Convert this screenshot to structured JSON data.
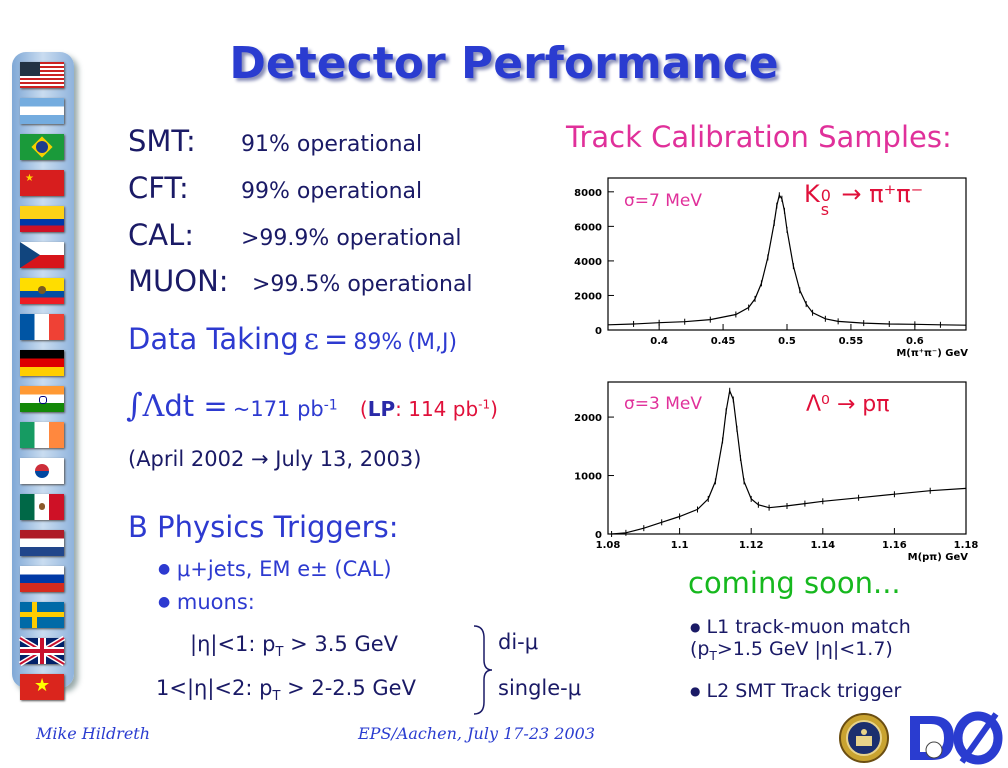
{
  "title": "Detector Performance",
  "detectors": [
    {
      "name": "SMT:",
      "value": "91% operational"
    },
    {
      "name": "CFT:",
      "value": "99% operational"
    },
    {
      "name": "CAL:",
      "value": ">99.9% operational"
    },
    {
      "name": "MUON:",
      "value": ">99.5% operational"
    }
  ],
  "data_taking": {
    "label": "Data Taking",
    "epsilon": "ε",
    "eq": "=",
    "value": "89%",
    "note": "(M,J)"
  },
  "luminosity": {
    "integral": "∫",
    "lambda": "Λ",
    "dt": "dt =",
    "value": "~171 pb",
    "exp": "-1",
    "lp_open": "(",
    "lp": "LP",
    "lp_rest": ": 114 pb",
    "lp_exp": "-1",
    "lp_close": ")"
  },
  "period": "(April 2002 → July 13, 2003)",
  "triggers": {
    "heading": "B Physics Triggers:",
    "bullets": [
      "μ+jets, EM e± (CAL)",
      "muons:"
    ],
    "rows": [
      {
        "cut": "|η|<1: p",
        "sub": "T",
        "rest": " > 3.5 GeV",
        "type": "di-μ"
      },
      {
        "cut": "1<|η|<2: p",
        "sub": "T",
        "rest": " > 2-2.5 GeV",
        "type": "single-μ"
      }
    ]
  },
  "calib": {
    "heading": "Track Calibration Samples:",
    "top": {
      "sigma": "σ=7 MeV",
      "label_k": "K",
      "label_sup": "0",
      "label_sub": "s",
      "label_rest": " → π⁺π⁻",
      "xlabel": "M(π⁺π⁻) GeV"
    },
    "bottom": {
      "sigma": "σ=3 MeV",
      "label": "Λ⁰ → pπ",
      "xlabel": "M(pπ) GeV"
    }
  },
  "coming": {
    "heading": "coming soon...",
    "items": [
      {
        "a": "L1 track-muon match",
        "b": "(p",
        "sub": "T",
        "c": ">1.5 GeV |η|<1.7)"
      },
      {
        "a": "L2 SMT Track trigger"
      }
    ]
  },
  "footer": {
    "author": "Mike Hildreth",
    "event": "EPS/Aachen, July 17-23 2003"
  },
  "chart_data": [
    {
      "type": "line",
      "title": "",
      "xlabel": "M(π⁺π⁻) GeV",
      "ylabel": "",
      "xlim": [
        0.36,
        0.64
      ],
      "ylim": [
        0,
        8800
      ],
      "x_ticks": [
        0.4,
        0.45,
        0.5,
        0.55,
        0.6
      ],
      "y_ticks": [
        0,
        2000,
        4000,
        6000,
        8000
      ],
      "x": [
        0.36,
        0.38,
        0.4,
        0.42,
        0.44,
        0.46,
        0.47,
        0.475,
        0.48,
        0.485,
        0.49,
        0.492,
        0.494,
        0.496,
        0.498,
        0.5,
        0.505,
        0.51,
        0.515,
        0.52,
        0.53,
        0.54,
        0.56,
        0.58,
        0.6,
        0.62,
        0.64
      ],
      "y": [
        300,
        350,
        420,
        480,
        600,
        900,
        1300,
        1800,
        2700,
        4200,
        6200,
        7200,
        7800,
        7600,
        6900,
        5800,
        3700,
        2300,
        1500,
        1000,
        650,
        500,
        400,
        350,
        330,
        300,
        280
      ]
    },
    {
      "type": "line",
      "title": "",
      "xlabel": "M(pπ) GeV",
      "ylabel": "",
      "xlim": [
        1.08,
        1.18
      ],
      "ylim": [
        0,
        2600
      ],
      "x_ticks": [
        1.08,
        1.1,
        1.12,
        1.14,
        1.16,
        1.18
      ],
      "y_ticks": [
        0,
        1000,
        2000
      ],
      "x": [
        1.081,
        1.085,
        1.09,
        1.095,
        1.1,
        1.105,
        1.108,
        1.11,
        1.112,
        1.113,
        1.114,
        1.115,
        1.116,
        1.117,
        1.118,
        1.12,
        1.122,
        1.125,
        1.13,
        1.135,
        1.14,
        1.15,
        1.16,
        1.17,
        1.18
      ],
      "y": [
        0,
        20,
        100,
        200,
        300,
        420,
        600,
        900,
        1600,
        2100,
        2450,
        2300,
        1800,
        1300,
        900,
        600,
        500,
        450,
        480,
        520,
        560,
        620,
        680,
        740,
        780
      ]
    }
  ]
}
